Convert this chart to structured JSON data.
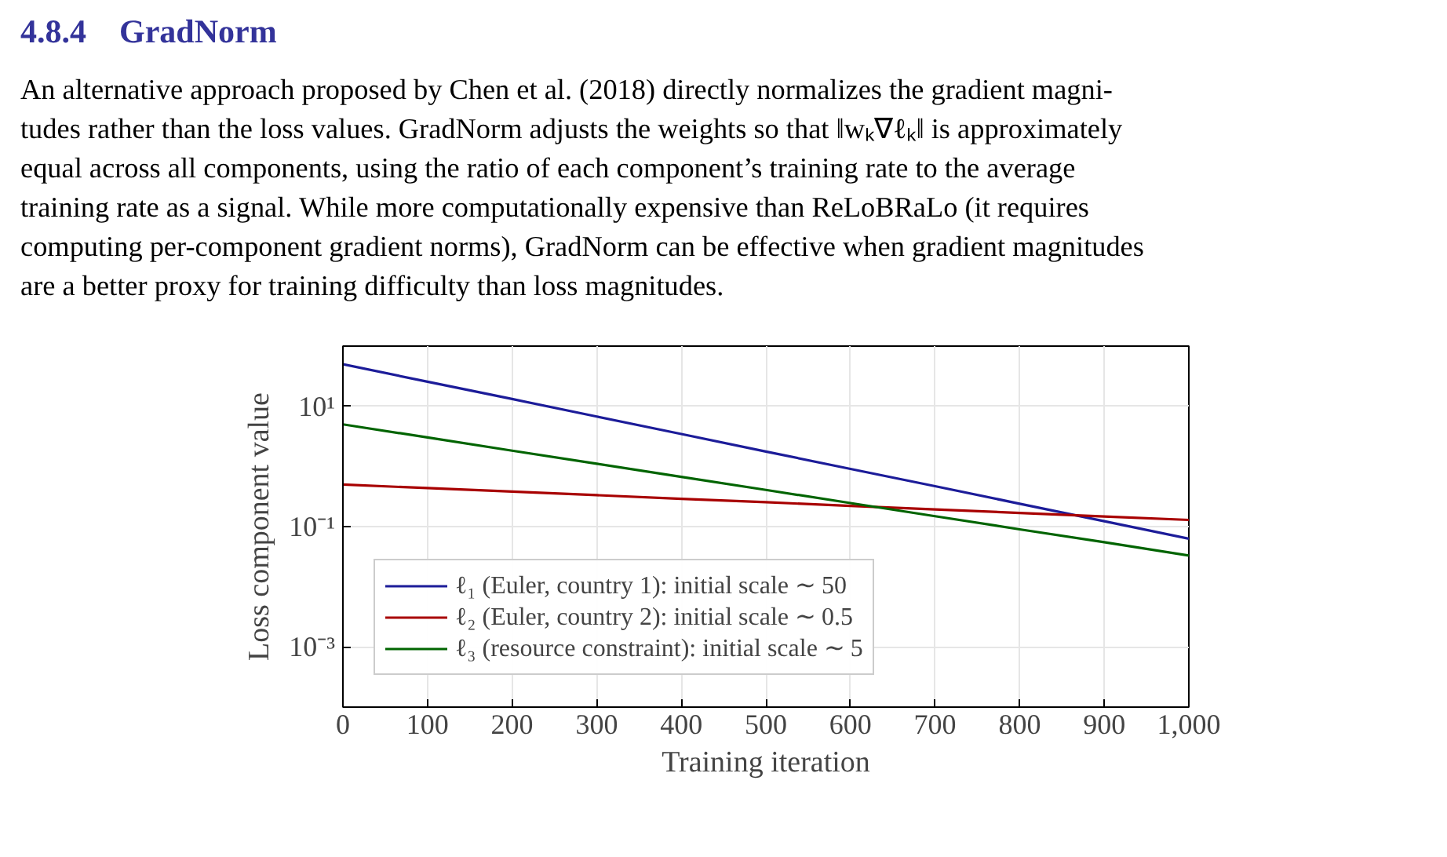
{
  "chart_data": {
    "type": "line",
    "title": "4.8.4    GradNorm",
    "annotations": [
      "An alternative approach proposed by Chen et al. (2018) directly normalizes the gradient magni-",
      "tudes rather than the loss values. GradNorm adjusts the weights so that ‖wₖ∇ℓₖ‖ is approximately",
      "equal across all components, using the ratio of each component’s training rate to the average",
      "training rate as a signal. While more computationally expensive than ReLoBRaLo (it requires",
      "computing per-component gradient norms), GradNorm can be effective when gradient magnitudes",
      "are a better proxy for training difficulty than loss magnitudes."
    ],
    "xlabel": "Training iteration",
    "ylabel": "Loss component value",
    "x": [
      0,
      100,
      200,
      300,
      400,
      500,
      600,
      700,
      800,
      900,
      1000
    ],
    "series": [
      {
        "name": "ℓ₁ (Euler, country 1): initial scale ∼ 50",
        "color": "#1c1c99",
        "values": [
          50,
          25.6,
          13.2,
          6.75,
          3.46,
          1.77,
          0.91,
          0.47,
          0.24,
          0.123,
          0.063
        ]
      },
      {
        "name": "ℓ₂ (Euler, country 2): initial scale ∼ 0.5",
        "color": "#a80000",
        "values": [
          0.5,
          0.436,
          0.381,
          0.333,
          0.29,
          0.254,
          0.221,
          0.193,
          0.169,
          0.147,
          0.129
        ]
      },
      {
        "name": "ℓ₃ (resource constraint): initial scale ∼ 5",
        "color": "#006400",
        "values": [
          5,
          3.03,
          1.83,
          1.11,
          0.672,
          0.407,
          0.246,
          0.149,
          0.09,
          0.055,
          0.033
        ]
      }
    ],
    "xlim": [
      0,
      1000
    ],
    "ylim": [
      0.0001,
      100
    ],
    "xticks": [
      0,
      100,
      200,
      300,
      400,
      500,
      600,
      700,
      800,
      900,
      {
        "value": 1000,
        "label": "1,000"
      }
    ],
    "yticks": [
      {
        "value": 10,
        "label": "10¹"
      },
      {
        "value": 0.1,
        "label": "10⁻¹"
      },
      {
        "value": 0.001,
        "label": "10⁻³"
      }
    ],
    "log": "y",
    "grid": true,
    "legend": "bottom left"
  }
}
